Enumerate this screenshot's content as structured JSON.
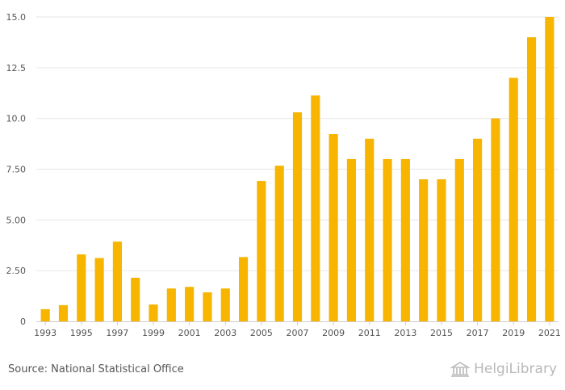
{
  "chart_data": {
    "type": "bar",
    "title": "",
    "xlabel": "",
    "ylabel": "",
    "categories": [
      "1993",
      "1994",
      "1995",
      "1996",
      "1997",
      "1998",
      "1999",
      "2000",
      "2001",
      "2002",
      "2003",
      "2004",
      "2005",
      "2006",
      "2007",
      "2008",
      "2009",
      "2010",
      "2011",
      "2012",
      "2013",
      "2014",
      "2015",
      "2016",
      "2017",
      "2018",
      "2019",
      "2020",
      "2021"
    ],
    "x_tick_labels": [
      "1993",
      "1995",
      "1997",
      "1999",
      "2001",
      "2003",
      "2005",
      "2007",
      "2009",
      "2011",
      "2013",
      "2015",
      "2017",
      "2019",
      "2021"
    ],
    "values": [
      0.6,
      0.8,
      3.3,
      3.12,
      3.93,
      2.15,
      0.83,
      1.62,
      1.7,
      1.43,
      1.62,
      3.17,
      6.92,
      7.67,
      10.3,
      11.13,
      9.23,
      8.0,
      9.0,
      8.0,
      8.0,
      7.0,
      7.0,
      8.0,
      9.0,
      10.0,
      12.0,
      14.0,
      15.0
    ],
    "ylim": [
      0,
      15
    ],
    "y_ticks": [
      0,
      2.5,
      5,
      7.5,
      10,
      12.5,
      15
    ],
    "y_tick_labels": [
      "0",
      "2.50",
      "5.00",
      "7.50",
      "10.0",
      "12.5",
      "15.0"
    ],
    "grid": true,
    "bar_color": "#f7b500"
  },
  "footer": {
    "source": "Source: National Statistical Office",
    "logo_text": "HelgiLibrary"
  },
  "colors": {
    "bar": "#f7b500",
    "grid": "#e6e6e6",
    "axis": "#cfcfcf",
    "tick_text": "#555555"
  }
}
